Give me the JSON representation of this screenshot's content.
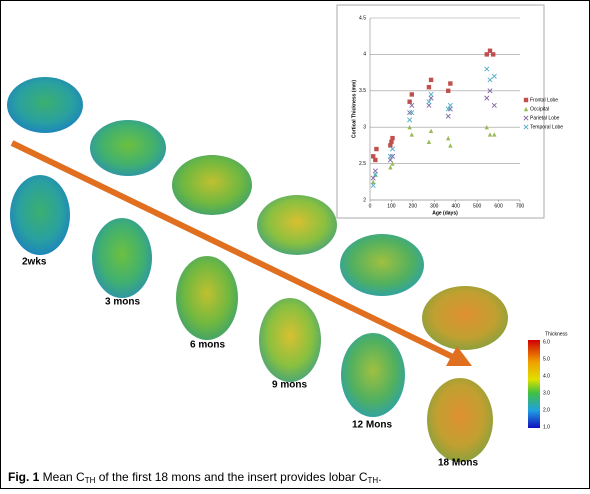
{
  "chart_data": {
    "type": "scatter",
    "xlabel": "Age (days)",
    "ylabel": "Cortical Thickness (mm)",
    "xlim": [
      0,
      700
    ],
    "xticks": [
      0,
      100,
      200,
      300,
      400,
      500,
      600,
      700
    ],
    "ylim": [
      2,
      4.5
    ],
    "yticks": [
      2,
      2.5,
      3,
      3.5,
      4,
      4.5
    ],
    "grid": true,
    "legend": "right",
    "series": [
      {
        "name": "Frontal Lobe",
        "color": "#c0504d",
        "marker": "square",
        "x": [
          15,
          25,
          30,
          95,
          100,
          105,
          185,
          195,
          275,
          285,
          365,
          375,
          545,
          560,
          575
        ],
        "values": [
          2.6,
          2.55,
          2.7,
          2.75,
          2.8,
          2.85,
          3.35,
          3.45,
          3.55,
          3.65,
          3.5,
          3.6,
          4.0,
          4.05,
          4.0
        ]
      },
      {
        "name": "Occipital",
        "color": "#9bbb59",
        "marker": "triangle",
        "x": [
          15,
          25,
          95,
          105,
          185,
          195,
          275,
          285,
          365,
          375,
          545,
          560,
          580
        ],
        "values": [
          2.25,
          2.35,
          2.45,
          2.5,
          3.0,
          2.9,
          2.8,
          2.95,
          2.85,
          2.75,
          3.0,
          2.9,
          2.9
        ]
      },
      {
        "name": "Parietal Lobe",
        "color": "#8064a2",
        "marker": "x",
        "x": [
          15,
          25,
          95,
          105,
          185,
          195,
          275,
          285,
          365,
          375,
          545,
          560,
          580
        ],
        "values": [
          2.3,
          2.4,
          2.55,
          2.6,
          3.2,
          3.3,
          3.3,
          3.4,
          3.15,
          3.25,
          3.4,
          3.5,
          3.3
        ]
      },
      {
        "name": "Temporal Lobe",
        "color": "#4bacc6",
        "marker": "x",
        "x": [
          15,
          25,
          95,
          105,
          185,
          195,
          275,
          285,
          365,
          375,
          545,
          560,
          580
        ],
        "values": [
          2.2,
          2.35,
          2.6,
          2.7,
          3.1,
          3.2,
          3.35,
          3.45,
          3.25,
          3.3,
          3.8,
          3.65,
          3.7
        ]
      }
    ]
  },
  "figure": {
    "time_labels": [
      "2wks",
      "3 mons",
      "6 mons",
      "9 mons",
      "12 Mons",
      "18 Mons"
    ],
    "colorbar": {
      "title": "Thickness",
      "labels": [
        "6.0",
        "5.0",
        "4.0",
        "3.0",
        "2.0",
        "1.0"
      ]
    }
  },
  "caption": {
    "label": "Fig. 1",
    "text1": " Mean C",
    "sub1": "TH",
    "text2": " of the first 18 mons and the insert provides lobar C",
    "sub2": "TH",
    "text3": "."
  }
}
